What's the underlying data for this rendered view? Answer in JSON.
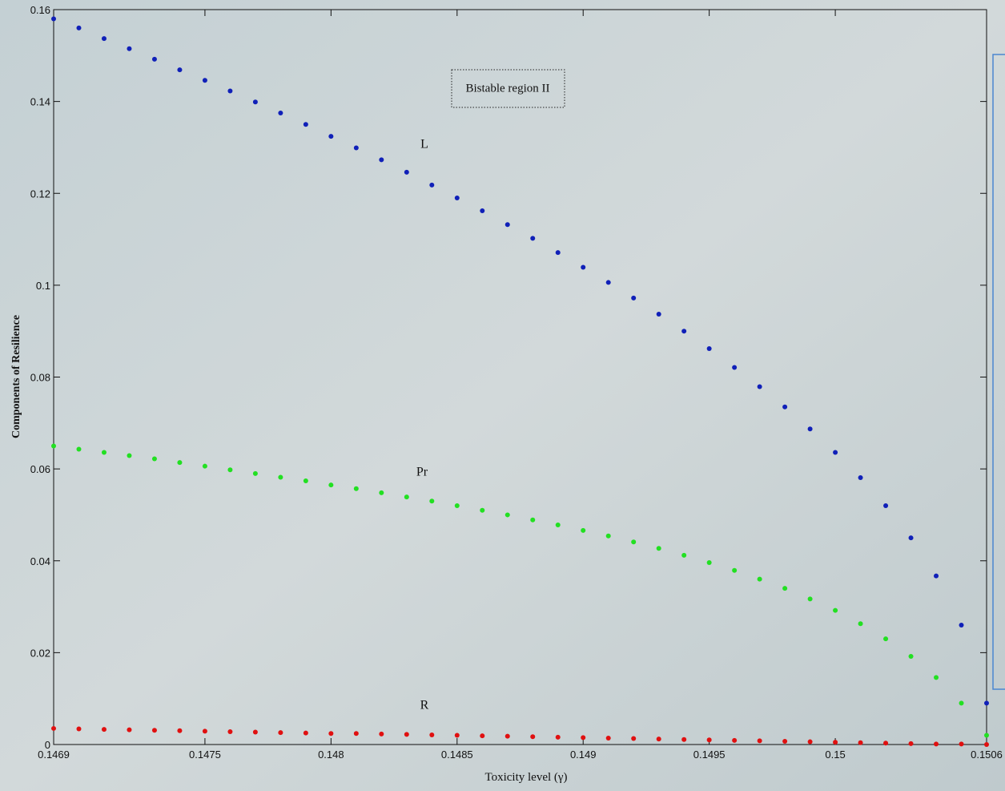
{
  "chart_data": {
    "type": "scatter",
    "xlabel": "Toxicity level (γ)",
    "ylabel": "Components of Resilience",
    "annotation": "Bistable region II",
    "x": [
      0.1469,
      0.147,
      0.1471,
      0.1472,
      0.1473,
      0.1474,
      0.1475,
      0.1476,
      0.1477,
      0.1478,
      0.1479,
      0.148,
      0.1481,
      0.1482,
      0.1483,
      0.1484,
      0.1485,
      0.1486,
      0.1487,
      0.1488,
      0.1489,
      0.149,
      0.1491,
      0.1492,
      0.1493,
      0.1494,
      0.1495,
      0.1496,
      0.1497,
      0.1498,
      0.1499,
      0.15,
      0.1501,
      0.1502,
      0.1503,
      0.1504,
      0.1505,
      0.1506
    ],
    "series": [
      {
        "name": "L",
        "color": "#1020b8",
        "values": [
          0.158,
          0.156,
          0.1537,
          0.1515,
          0.1492,
          0.1469,
          0.1446,
          0.1423,
          0.1399,
          0.1375,
          0.135,
          0.1324,
          0.1299,
          0.1273,
          0.1246,
          0.1218,
          0.119,
          0.1162,
          0.1132,
          0.1102,
          0.1071,
          0.1039,
          0.1006,
          0.0972,
          0.0937,
          0.09,
          0.0862,
          0.0821,
          0.0779,
          0.0735,
          0.0687,
          0.0636,
          0.0581,
          0.052,
          0.045,
          0.0367,
          0.026,
          0.009
        ]
      },
      {
        "name": "Pr",
        "color": "#22e022",
        "values": [
          0.065,
          0.0643,
          0.0636,
          0.0629,
          0.0622,
          0.0614,
          0.0606,
          0.0598,
          0.059,
          0.0582,
          0.0574,
          0.0565,
          0.0557,
          0.0548,
          0.0539,
          0.053,
          0.052,
          0.051,
          0.05,
          0.0489,
          0.0478,
          0.0466,
          0.0454,
          0.0441,
          0.0427,
          0.0412,
          0.0396,
          0.0379,
          0.036,
          0.034,
          0.0317,
          0.0292,
          0.0263,
          0.023,
          0.0192,
          0.0146,
          0.009,
          0.002
        ]
      },
      {
        "name": "R",
        "color": "#e01010",
        "values": [
          0.0035,
          0.0034,
          0.0033,
          0.0032,
          0.0031,
          0.003,
          0.0029,
          0.0028,
          0.0027,
          0.0026,
          0.0025,
          0.0024,
          0.0024,
          0.0023,
          0.0022,
          0.0021,
          0.002,
          0.0019,
          0.0018,
          0.0017,
          0.0016,
          0.0015,
          0.0014,
          0.0013,
          0.0012,
          0.0011,
          0.001,
          0.0009,
          0.0008,
          0.0007,
          0.0006,
          0.0005,
          0.0004,
          0.0003,
          0.0002,
          0.0001,
          0.0001,
          0
        ]
      }
    ],
    "xlim": [
      0.1469,
      0.1506
    ],
    "ylim": [
      0,
      0.16
    ],
    "xticks": [
      0.1469,
      0.1475,
      0.148,
      0.1485,
      0.149,
      0.1495,
      0.15,
      0.1506
    ],
    "yticks": [
      0,
      0.02,
      0.04,
      0.06,
      0.08,
      0.1,
      0.12,
      0.14,
      0.16
    ]
  }
}
